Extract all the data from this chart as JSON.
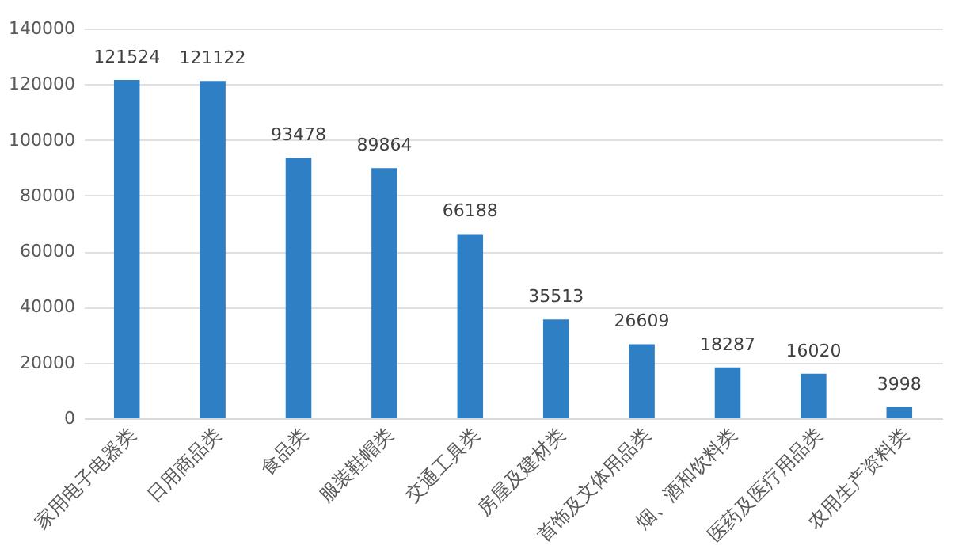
{
  "chart_data": {
    "type": "bar",
    "categories": [
      "家用电子电器类",
      "日用商品类",
      "食品类",
      "服装鞋帽类",
      "交通工具类",
      "房屋及建材类",
      "首饰及文体用品类",
      "烟、酒和饮料类",
      "医药及医疗用品类",
      "农用生产资料类"
    ],
    "values": [
      121524,
      121122,
      93478,
      89864,
      66188,
      35513,
      26609,
      18287,
      16020,
      3998
    ],
    "color": "#2e7fc4",
    "ylim": [
      0,
      140000
    ],
    "yticks": [
      0,
      20000,
      40000,
      60000,
      80000,
      100000,
      120000,
      140000
    ],
    "grid": "y",
    "data_labels": true
  }
}
